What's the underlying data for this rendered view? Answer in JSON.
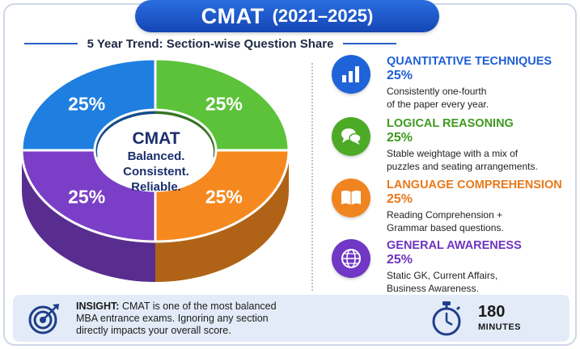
{
  "header": {
    "title": "CMAT",
    "years": "(2021–2025)",
    "subtitle": "5 Year Trend: Section-wise Question Share"
  },
  "chart_data": {
    "type": "pie",
    "categories": [
      "Quantitative Techniques",
      "Logical Reasoning",
      "Language Comprehension",
      "General Awareness"
    ],
    "values": [
      25,
      25,
      25,
      25
    ],
    "slice_labels": [
      "25%",
      "25%",
      "25%",
      "25%"
    ],
    "colors": [
      "#1f7fe0",
      "#5cc23a",
      "#f5891f",
      "#7a3fc6"
    ]
  },
  "center": {
    "title": "CMAT",
    "line1": "Balanced.",
    "line2": "Consistent.",
    "line3": "Reliable."
  },
  "sections": [
    {
      "title": "QUANTITATIVE TECHNIQUES",
      "pct": "25%",
      "desc1": "Consistently one-fourth",
      "desc2": "of the paper every year.",
      "color": "#1f5fd6",
      "icon": "bar-chart-icon"
    },
    {
      "title": "LOGICAL REASONING",
      "pct": "25%",
      "desc1": "Stable weightage with a mix of",
      "desc2": "puzzles and seating arrangements.",
      "color": "#3e9a1e",
      "icon": "speech-bubbles-icon"
    },
    {
      "title": "LANGUAGE COMPREHENSION",
      "pct": "25%",
      "desc1": "Reading Comprehension +",
      "desc2": "Grammar based questions.",
      "color": "#e9781a",
      "icon": "book-icon"
    },
    {
      "title": "GENERAL AWARENESS",
      "pct": "25%",
      "desc1": "Static GK, Current Affairs,",
      "desc2": "Business Awareness.",
      "color": "#6d35bd",
      "icon": "globe-icon"
    }
  ],
  "insight": {
    "label": "INSIGHT:",
    "text1": "CMAT is one of the most balanced",
    "text2": "MBA entrance exams. Ignoring any section",
    "text3": "directly impacts your overall score."
  },
  "duration": {
    "value": "180",
    "unit": "MINUTES"
  }
}
